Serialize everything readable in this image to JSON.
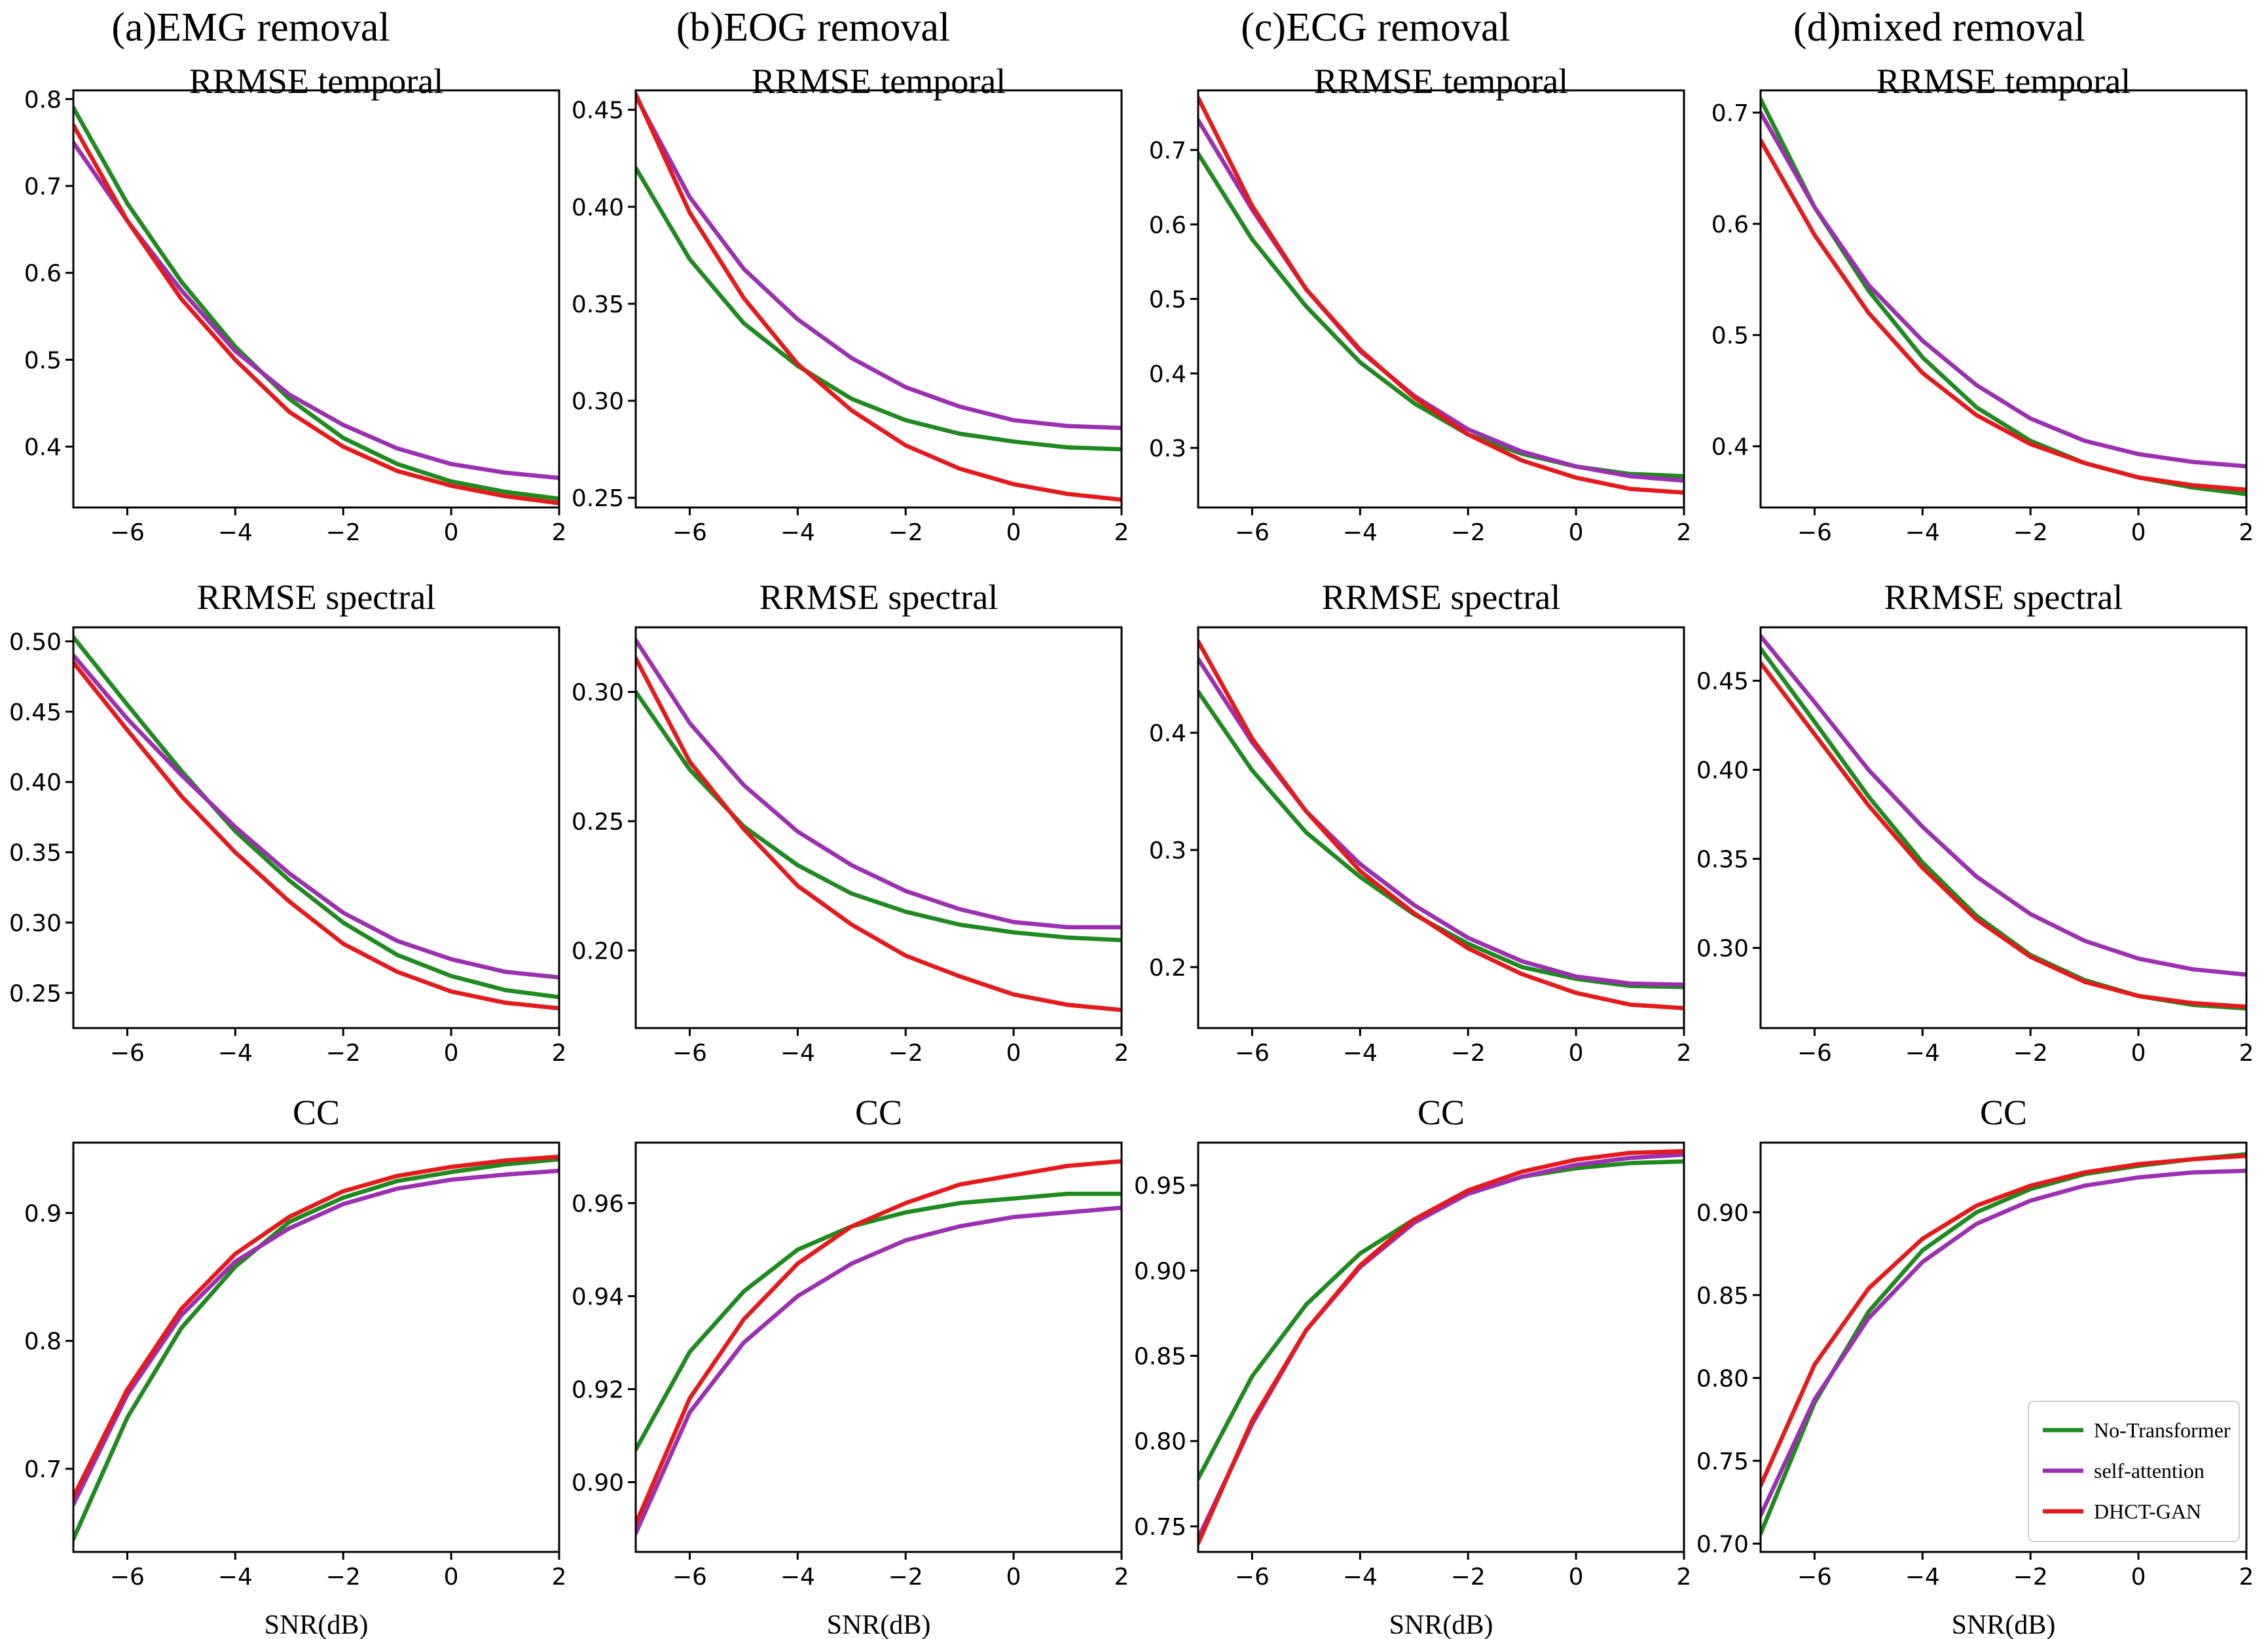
{
  "chart_data": {
    "type": "line",
    "column_titles": [
      "(a)EMG removal",
      "(b)EOG removal",
      "(c)ECG removal",
      "(d)mixed removal"
    ],
    "row_titles": [
      "RRMSE temporal",
      "RRMSE spectral",
      "CC"
    ],
    "xlabel": "SNR(dB)",
    "x": [
      -7,
      -6,
      -5,
      -4,
      -3,
      -2,
      -1,
      0,
      1,
      2
    ],
    "xlim": [
      -7,
      2
    ],
    "xticks": [
      -6,
      -4,
      -2,
      0,
      2
    ],
    "legend": {
      "location": "lower-right of panel (d) CC",
      "entries": [
        "No-Transformer",
        "self-attention",
        "DHCT-GAN"
      ]
    },
    "colors": {
      "No-Transformer": "#1f8a1f",
      "self-attention": "#9b30b0",
      "DHCT-GAN": "#e41a1c"
    },
    "panels": [
      {
        "column": "(a)EMG removal",
        "title": "RRMSE temporal",
        "ylim": [
          0.33,
          0.81
        ],
        "yticks": [
          0.4,
          0.5,
          0.6,
          0.7,
          0.8
        ],
        "ytick_labels": [
          "0.4",
          "0.5",
          "0.6",
          "0.7",
          "0.8"
        ],
        "series": [
          {
            "name": "No-Transformer",
            "values": [
              0.79,
              0.68,
              0.59,
              0.515,
              0.455,
              0.41,
              0.38,
              0.36,
              0.348,
              0.34
            ]
          },
          {
            "name": "self-attention",
            "values": [
              0.75,
              0.66,
              0.58,
              0.51,
              0.46,
              0.425,
              0.398,
              0.38,
              0.37,
              0.364
            ]
          },
          {
            "name": "DHCT-GAN",
            "values": [
              0.77,
              0.66,
              0.57,
              0.5,
              0.44,
              0.4,
              0.372,
              0.355,
              0.343,
              0.335
            ]
          }
        ]
      },
      {
        "column": "(b)EOG removal",
        "title": "RRMSE temporal",
        "ylim": [
          0.245,
          0.46
        ],
        "yticks": [
          0.25,
          0.3,
          0.35,
          0.4,
          0.45
        ],
        "ytick_labels": [
          "0.25",
          "0.30",
          "0.35",
          "0.40",
          "0.45"
        ],
        "series": [
          {
            "name": "No-Transformer",
            "values": [
              0.42,
              0.373,
              0.34,
              0.318,
              0.301,
              0.29,
              0.283,
              0.279,
              0.276,
              0.275
            ]
          },
          {
            "name": "self-attention",
            "values": [
              0.457,
              0.405,
              0.368,
              0.342,
              0.322,
              0.307,
              0.297,
              0.29,
              0.287,
              0.286
            ]
          },
          {
            "name": "DHCT-GAN",
            "values": [
              0.458,
              0.397,
              0.353,
              0.319,
              0.295,
              0.277,
              0.265,
              0.257,
              0.252,
              0.249
            ]
          }
        ]
      },
      {
        "column": "(c)ECG removal",
        "title": "RRMSE temporal",
        "ylim": [
          0.22,
          0.78
        ],
        "yticks": [
          0.3,
          0.4,
          0.5,
          0.6,
          0.7
        ],
        "ytick_labels": [
          "0.3",
          "0.4",
          "0.5",
          "0.6",
          "0.7"
        ],
        "series": [
          {
            "name": "No-Transformer",
            "values": [
              0.695,
              0.58,
              0.49,
              0.415,
              0.36,
              0.318,
              0.292,
              0.275,
              0.265,
              0.262
            ]
          },
          {
            "name": "self-attention",
            "values": [
              0.74,
              0.62,
              0.513,
              0.43,
              0.37,
              0.325,
              0.295,
              0.275,
              0.262,
              0.256
            ]
          },
          {
            "name": "DHCT-GAN",
            "values": [
              0.77,
              0.625,
              0.513,
              0.432,
              0.368,
              0.318,
              0.283,
              0.26,
              0.245,
              0.24
            ]
          }
        ]
      },
      {
        "column": "(d)mixed removal",
        "title": "RRMSE temporal",
        "ylim": [
          0.345,
          0.72
        ],
        "yticks": [
          0.4,
          0.5,
          0.6,
          0.7
        ],
        "ytick_labels": [
          "0.4",
          "0.5",
          "0.6",
          "0.7"
        ],
        "series": [
          {
            "name": "No-Transformer",
            "values": [
              0.712,
              0.615,
              0.54,
              0.48,
              0.435,
              0.405,
              0.385,
              0.372,
              0.363,
              0.357
            ]
          },
          {
            "name": "self-attention",
            "values": [
              0.7,
              0.615,
              0.545,
              0.495,
              0.455,
              0.425,
              0.405,
              0.393,
              0.386,
              0.382
            ]
          },
          {
            "name": "DHCT-GAN",
            "values": [
              0.675,
              0.59,
              0.52,
              0.466,
              0.428,
              0.402,
              0.385,
              0.372,
              0.365,
              0.361
            ]
          }
        ]
      },
      {
        "column": "(a)EMG removal",
        "title": "RRMSE spectral",
        "ylim": [
          0.225,
          0.51
        ],
        "yticks": [
          0.25,
          0.3,
          0.35,
          0.4,
          0.45,
          0.5
        ],
        "ytick_labels": [
          "0.25",
          "0.30",
          "0.35",
          "0.40",
          "0.45",
          "0.50"
        ],
        "series": [
          {
            "name": "No-Transformer",
            "values": [
              0.503,
              0.455,
              0.408,
              0.365,
              0.33,
              0.3,
              0.277,
              0.262,
              0.252,
              0.247
            ]
          },
          {
            "name": "self-attention",
            "values": [
              0.49,
              0.445,
              0.405,
              0.368,
              0.335,
              0.307,
              0.287,
              0.274,
              0.265,
              0.261
            ]
          },
          {
            "name": "DHCT-GAN",
            "values": [
              0.485,
              0.437,
              0.39,
              0.35,
              0.315,
              0.285,
              0.265,
              0.251,
              0.243,
              0.239
            ]
          }
        ]
      },
      {
        "column": "(b)EOG removal",
        "title": "RRMSE spectral",
        "ylim": [
          0.17,
          0.325
        ],
        "yticks": [
          0.2,
          0.25,
          0.3
        ],
        "ytick_labels": [
          "0.20",
          "0.25",
          "0.30"
        ],
        "series": [
          {
            "name": "No-Transformer",
            "values": [
              0.3,
              0.27,
              0.248,
              0.233,
              0.222,
              0.215,
              0.21,
              0.207,
              0.205,
              0.204
            ]
          },
          {
            "name": "self-attention",
            "values": [
              0.32,
              0.288,
              0.264,
              0.246,
              0.233,
              0.223,
              0.216,
              0.211,
              0.209,
              0.209
            ]
          },
          {
            "name": "DHCT-GAN",
            "values": [
              0.313,
              0.273,
              0.247,
              0.225,
              0.21,
              0.198,
              0.19,
              0.183,
              0.179,
              0.177
            ]
          }
        ]
      },
      {
        "column": "(c)ECG removal",
        "title": "RRMSE spectral",
        "ylim": [
          0.148,
          0.49
        ],
        "yticks": [
          0.2,
          0.3,
          0.4
        ],
        "ytick_labels": [
          "0.2",
          "0.3",
          "0.4"
        ],
        "series": [
          {
            "name": "No-Transformer",
            "values": [
              0.435,
              0.368,
              0.315,
              0.277,
              0.245,
              0.22,
              0.2,
              0.19,
              0.184,
              0.183
            ]
          },
          {
            "name": "self-attention",
            "values": [
              0.463,
              0.392,
              0.333,
              0.288,
              0.253,
              0.225,
              0.205,
              0.192,
              0.186,
              0.185
            ]
          },
          {
            "name": "DHCT-GAN",
            "values": [
              0.478,
              0.395,
              0.333,
              0.282,
              0.246,
              0.216,
              0.194,
              0.178,
              0.168,
              0.165
            ]
          }
        ]
      },
      {
        "column": "(d)mixed removal",
        "title": "RRMSE spectral",
        "ylim": [
          0.255,
          0.48
        ],
        "yticks": [
          0.3,
          0.35,
          0.4,
          0.45
        ],
        "ytick_labels": [
          "0.30",
          "0.35",
          "0.40",
          "0.45"
        ],
        "series": [
          {
            "name": "No-Transformer",
            "values": [
              0.468,
              0.427,
              0.385,
              0.348,
              0.318,
              0.296,
              0.282,
              0.273,
              0.268,
              0.266
            ]
          },
          {
            "name": "self-attention",
            "values": [
              0.475,
              0.438,
              0.4,
              0.368,
              0.34,
              0.319,
              0.304,
              0.294,
              0.288,
              0.285
            ]
          },
          {
            "name": "DHCT-GAN",
            "values": [
              0.46,
              0.42,
              0.38,
              0.345,
              0.316,
              0.295,
              0.281,
              0.273,
              0.269,
              0.267
            ]
          }
        ]
      },
      {
        "column": "(a)EMG removal",
        "title": "CC",
        "ylim": [
          0.635,
          0.955
        ],
        "yticks": [
          0.7,
          0.8,
          0.9
        ],
        "ytick_labels": [
          "0.7",
          "0.8",
          "0.9"
        ],
        "series": [
          {
            "name": "No-Transformer",
            "values": [
              0.645,
              0.74,
              0.81,
              0.858,
              0.893,
              0.912,
              0.925,
              0.932,
              0.938,
              0.942
            ]
          },
          {
            "name": "self-attention",
            "values": [
              0.672,
              0.758,
              0.82,
              0.862,
              0.888,
              0.907,
              0.919,
              0.926,
              0.93,
              0.933
            ]
          },
          {
            "name": "DHCT-GAN",
            "values": [
              0.678,
              0.762,
              0.825,
              0.868,
              0.897,
              0.917,
              0.929,
              0.936,
              0.941,
              0.944
            ]
          }
        ]
      },
      {
        "column": "(b)EOG removal",
        "title": "CC",
        "ylim": [
          0.885,
          0.973
        ],
        "yticks": [
          0.9,
          0.92,
          0.94,
          0.96
        ],
        "ytick_labels": [
          "0.90",
          "0.92",
          "0.94",
          "0.96"
        ],
        "series": [
          {
            "name": "No-Transformer",
            "values": [
              0.907,
              0.928,
              0.941,
              0.95,
              0.955,
              0.958,
              0.96,
              0.961,
              0.962,
              0.962
            ]
          },
          {
            "name": "self-attention",
            "values": [
              0.889,
              0.915,
              0.93,
              0.94,
              0.947,
              0.952,
              0.955,
              0.957,
              0.958,
              0.959
            ]
          },
          {
            "name": "DHCT-GAN",
            "values": [
              0.891,
              0.918,
              0.935,
              0.947,
              0.955,
              0.96,
              0.964,
              0.966,
              0.968,
              0.969
            ]
          }
        ]
      },
      {
        "column": "(c)ECG removal",
        "title": "CC",
        "ylim": [
          0.735,
          0.975
        ],
        "yticks": [
          0.75,
          0.8,
          0.85,
          0.9,
          0.95
        ],
        "ytick_labels": [
          "0.75",
          "0.80",
          "0.85",
          "0.90",
          "0.95"
        ],
        "series": [
          {
            "name": "No-Transformer",
            "values": [
              0.778,
              0.838,
              0.88,
              0.91,
              0.93,
              0.945,
              0.955,
              0.96,
              0.963,
              0.964
            ]
          },
          {
            "name": "self-attention",
            "values": [
              0.743,
              0.81,
              0.865,
              0.902,
              0.928,
              0.945,
              0.955,
              0.962,
              0.966,
              0.968
            ]
          },
          {
            "name": "DHCT-GAN",
            "values": [
              0.74,
              0.812,
              0.865,
              0.903,
              0.93,
              0.947,
              0.958,
              0.965,
              0.969,
              0.97
            ]
          }
        ]
      },
      {
        "column": "(d)mixed removal",
        "title": "CC",
        "ylim": [
          0.695,
          0.942
        ],
        "yticks": [
          0.7,
          0.75,
          0.8,
          0.85,
          0.9
        ],
        "ytick_labels": [
          "0.70",
          "0.75",
          "0.80",
          "0.85",
          "0.90"
        ],
        "series": [
          {
            "name": "No-Transformer",
            "values": [
              0.706,
              0.785,
              0.84,
              0.877,
              0.9,
              0.914,
              0.923,
              0.928,
              0.932,
              0.935
            ]
          },
          {
            "name": "self-attention",
            "values": [
              0.717,
              0.787,
              0.836,
              0.87,
              0.893,
              0.907,
              0.916,
              0.921,
              0.924,
              0.925
            ]
          },
          {
            "name": "DHCT-GAN",
            "values": [
              0.735,
              0.808,
              0.854,
              0.884,
              0.904,
              0.916,
              0.924,
              0.929,
              0.932,
              0.934
            ]
          }
        ]
      }
    ]
  }
}
